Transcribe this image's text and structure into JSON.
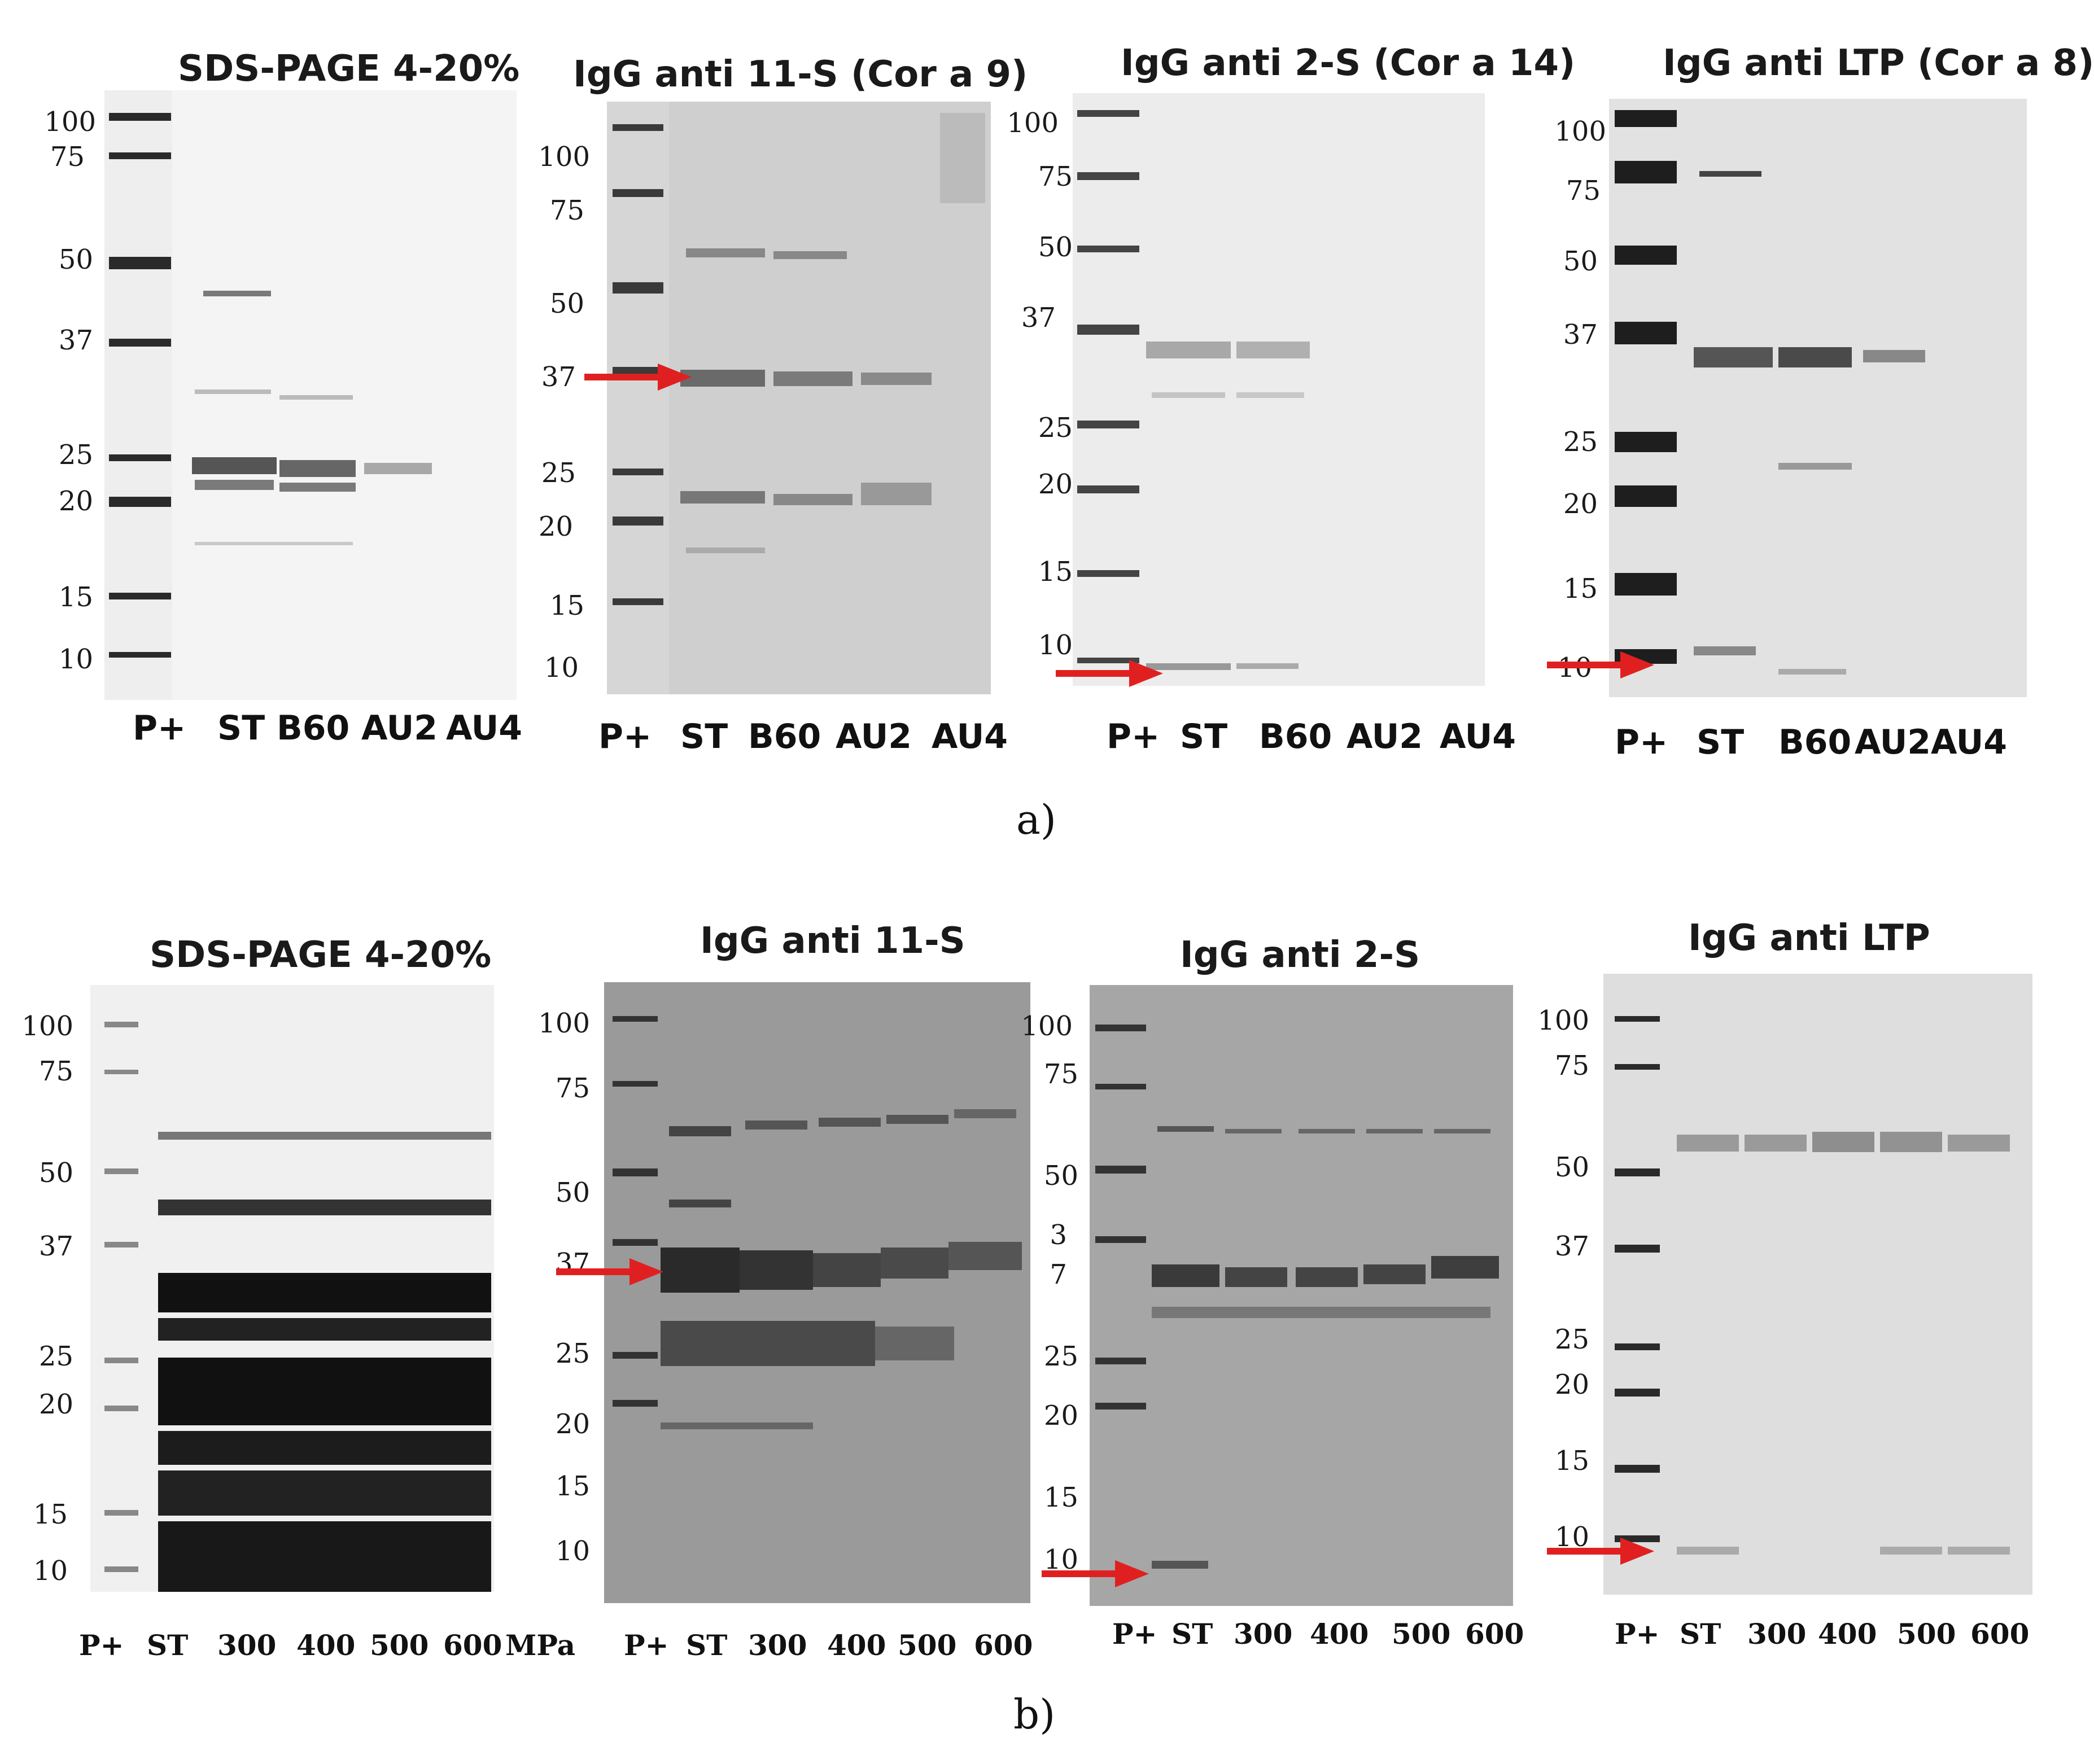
{
  "panel_a": {
    "caption": "a)",
    "blots": [
      {
        "title": "SDS-PAGE 4-20%",
        "mw": [
          "100",
          "75",
          "50",
          "37",
          "25",
          "20",
          "15",
          "10"
        ],
        "lanes": [
          "P+",
          "ST",
          "B60",
          "AU2",
          "AU4"
        ]
      },
      {
        "title": "IgG anti 11-S (Cor a 9)",
        "mw": [
          "100",
          "75",
          "50",
          "37",
          "25",
          "20",
          "15",
          "10"
        ],
        "lanes": [
          "P+",
          "ST",
          "B60",
          "AU2",
          "AU4"
        ]
      },
      {
        "title": "IgG anti 2-S (Cor a 14)",
        "mw": [
          "100",
          "75",
          "50",
          "37",
          "25",
          "20",
          "15",
          "10"
        ],
        "lanes": [
          "P+",
          "ST",
          "B60",
          "AU2",
          "AU4"
        ]
      },
      {
        "title": "IgG anti LTP (Cor a 8)",
        "mw": [
          "100",
          "75",
          "50",
          "37",
          "25",
          "20",
          "15",
          "10"
        ],
        "lanes": [
          "P+",
          "ST",
          "B60",
          "AU2",
          "AU4"
        ]
      }
    ]
  },
  "panel_b": {
    "caption": "b)",
    "blots": [
      {
        "title": "SDS-PAGE 4-20%",
        "mw": [
          "100",
          "75",
          "50",
          "37",
          "25",
          "20",
          "15",
          "10"
        ],
        "lanes": [
          "P+",
          "ST",
          "300",
          "400",
          "500",
          "600",
          "MPa"
        ]
      },
      {
        "title": "IgG anti 11-S",
        "mw": [
          "100",
          "75",
          "50",
          "37",
          "25",
          "20",
          "15",
          "10"
        ],
        "lanes": [
          "P+",
          "ST",
          "300",
          "400",
          "500",
          "600"
        ]
      },
      {
        "title": "IgG anti 2-S",
        "mw": [
          "100",
          "75",
          "50",
          "3",
          "7",
          "25",
          "20",
          "15",
          "10"
        ],
        "lanes": [
          "P+",
          "ST",
          "300",
          "400",
          "500",
          "600"
        ]
      },
      {
        "title": "IgG anti LTP",
        "mw": [
          "100",
          "75",
          "50",
          "37",
          "25",
          "20",
          "15",
          "10"
        ],
        "lanes": [
          "P+",
          "ST",
          "300",
          "400",
          "500",
          "600"
        ]
      }
    ]
  },
  "colors": {
    "arrow": "#e02020",
    "ink": "#1a1a1a"
  }
}
